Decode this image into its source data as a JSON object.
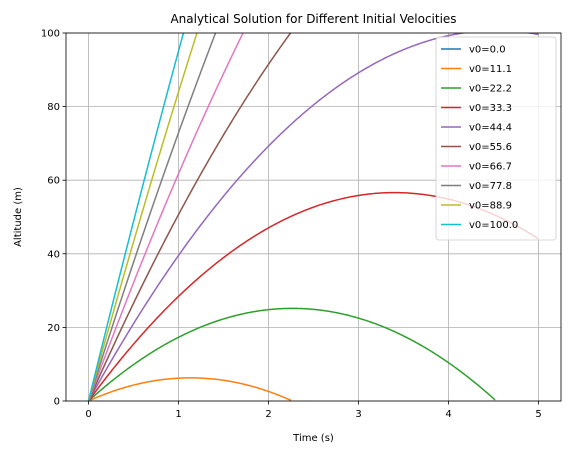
{
  "chart_data": {
    "type": "line",
    "title": "Analytical Solution for Different Initial Velocities",
    "xlabel": "Time (s)",
    "ylabel": "Altitude (m)",
    "xlim": [
      -0.25,
      5.25
    ],
    "ylim": [
      0,
      100
    ],
    "xticks": [
      0,
      1,
      2,
      3,
      4,
      5
    ],
    "yticks": [
      0,
      20,
      40,
      60,
      80,
      100
    ],
    "grid": true,
    "legend_position": "top-right",
    "t_range": [
      0,
      5
    ],
    "gravity": 9.81,
    "series": [
      {
        "name": "v0=0.0",
        "v0": 0.0,
        "color": "#1f77b4"
      },
      {
        "name": "v0=11.1",
        "v0": 11.111,
        "color": "#ff7f0e"
      },
      {
        "name": "v0=22.2",
        "v0": 22.222,
        "color": "#2ca02c"
      },
      {
        "name": "v0=33.3",
        "v0": 33.333,
        "color": "#d62728"
      },
      {
        "name": "v0=44.4",
        "v0": 44.444,
        "color": "#9467bd"
      },
      {
        "name": "v0=55.6",
        "v0": 55.556,
        "color": "#8c564b"
      },
      {
        "name": "v0=66.7",
        "v0": 66.667,
        "color": "#e377c2"
      },
      {
        "name": "v0=77.8",
        "v0": 77.778,
        "color": "#7f7f7f"
      },
      {
        "name": "v0=88.9",
        "v0": 88.889,
        "color": "#bcbd22"
      },
      {
        "name": "v0=100.0",
        "v0": 100.0,
        "color": "#17becf"
      }
    ]
  }
}
